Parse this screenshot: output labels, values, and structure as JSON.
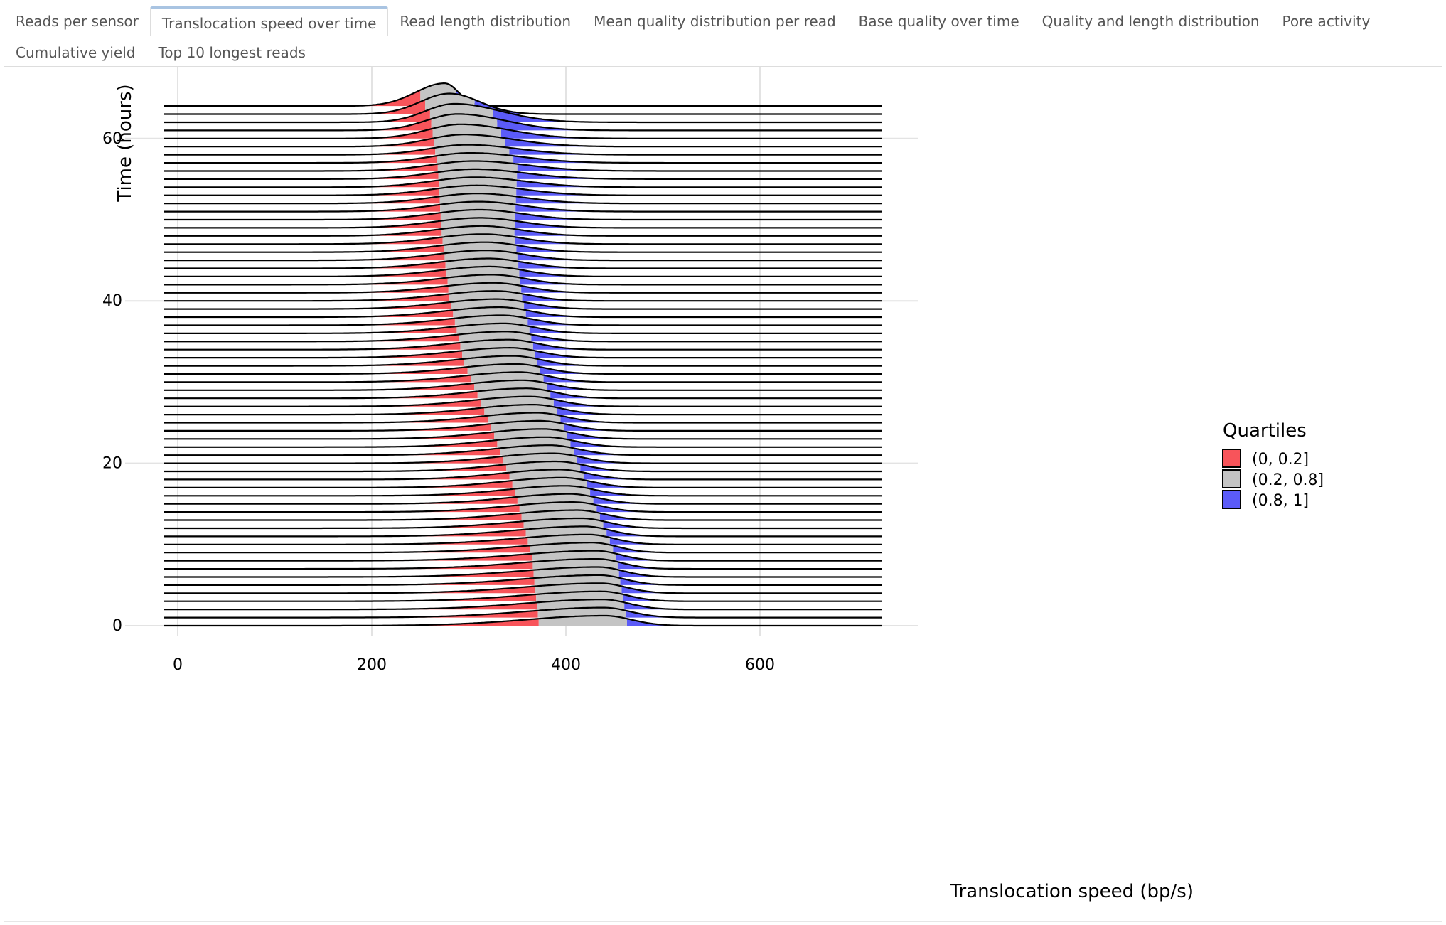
{
  "tabs": [
    {
      "label": "Reads per sensor",
      "active": false
    },
    {
      "label": "Translocation speed over time",
      "active": true
    },
    {
      "label": "Read length distribution",
      "active": false
    },
    {
      "label": "Mean quality distribution per read",
      "active": false
    },
    {
      "label": "Base quality over time",
      "active": false
    },
    {
      "label": "Quality and length distribution",
      "active": false
    },
    {
      "label": "Pore activity",
      "active": false
    },
    {
      "label": "Cumulative yield",
      "active": false
    },
    {
      "label": "Top 10 longest reads",
      "active": false
    }
  ],
  "chart_data": {
    "type": "ridgeline",
    "xlabel": "Translocation speed (bp/s)",
    "ylabel": "Time (hours)",
    "xlim": [
      -14,
      760
    ],
    "ylim": [
      0,
      64
    ],
    "x_ticks": [
      0,
      200,
      400,
      600
    ],
    "y_ticks": [
      0,
      20,
      40,
      60
    ],
    "grid": true,
    "legend": {
      "title": "Quartiles",
      "placement": "right",
      "entries": [
        {
          "label": "(0, 0.2]",
          "color": "#f8545a"
        },
        {
          "label": "(0.2, 0.8]",
          "color": "#c4c4c4"
        },
        {
          "label": "(0.8, 1]",
          "color": "#5b5bf8"
        }
      ]
    },
    "ridge_interval_hours": 1,
    "series": [
      {
        "time": 0,
        "mode": 440,
        "q20": 372,
        "q80": 463
      },
      {
        "time": 8,
        "mode": 431,
        "q20": 365,
        "q80": 452
      },
      {
        "time": 16,
        "mode": 400,
        "q20": 348,
        "q80": 425
      },
      {
        "time": 24,
        "mode": 373,
        "q20": 323,
        "q80": 398
      },
      {
        "time": 32,
        "mode": 345,
        "q20": 295,
        "q80": 370
      },
      {
        "time": 40,
        "mode": 327,
        "q20": 280,
        "q80": 355
      },
      {
        "time": 48,
        "mode": 313,
        "q20": 272,
        "q80": 347
      },
      {
        "time": 56,
        "mode": 305,
        "q20": 268,
        "q80": 350
      },
      {
        "time": 62,
        "mode": 285,
        "q20": 260,
        "q80": 325
      },
      {
        "time": 64,
        "mode": 275,
        "q20": 250,
        "q80": 287
      }
    ]
  }
}
